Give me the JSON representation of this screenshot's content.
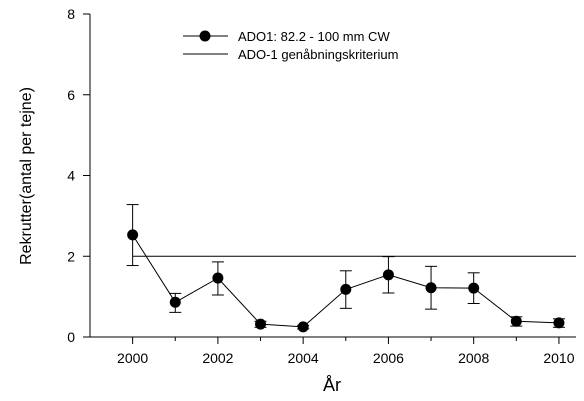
{
  "chart_data": {
    "type": "line",
    "xlabel": "År",
    "ylabel": "Rekrutter(antal per tejne)",
    "xlim": [
      1999,
      2010.4
    ],
    "ylim": [
      0,
      8
    ],
    "x_ticks": [
      2000,
      2002,
      2004,
      2006,
      2008,
      2010
    ],
    "y_ticks": [
      0,
      2,
      4,
      6,
      8
    ],
    "grid": false,
    "legend_position": "top-center",
    "series": [
      {
        "name": "ADO1: 82.2 - 100 mm CW",
        "kind": "line-with-markers-and-error-bars",
        "color": "#000000",
        "x": [
          2000,
          2001,
          2002,
          2003,
          2004,
          2005,
          2006,
          2007,
          2008,
          2009,
          2010
        ],
        "y": [
          2.53,
          0.86,
          1.46,
          0.32,
          0.25,
          1.18,
          1.54,
          1.22,
          1.21,
          0.39,
          0.35
        ],
        "err_low": [
          1.77,
          0.61,
          1.04,
          0.24,
          0.2,
          0.71,
          1.09,
          0.69,
          0.83,
          0.27,
          0.24
        ],
        "err_high": [
          3.28,
          1.08,
          1.86,
          0.39,
          0.29,
          1.64,
          1.99,
          1.75,
          1.59,
          0.5,
          0.45
        ]
      },
      {
        "name": "ADO-1 genåbningskriterium",
        "kind": "reference-line",
        "color": "#000000",
        "x": [
          2000,
          2010.4
        ],
        "y": [
          2.0,
          2.0
        ]
      }
    ]
  }
}
